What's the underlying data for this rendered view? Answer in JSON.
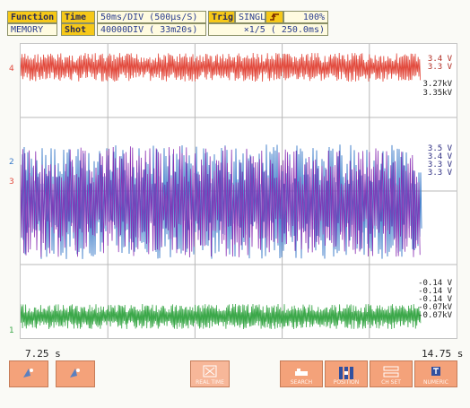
{
  "header": {
    "function_label": "Function",
    "function_value": "MEMORY",
    "time_label": "Time",
    "shot_label": "Shot",
    "time_value": "50ms/DIV  (500µs/S)",
    "shot_value": "40000DIV (  33m20s)",
    "trig_label": "Trig",
    "trig_mode": "SINGLE",
    "trig_icon": "trigger-edge-icon",
    "percent": "100%",
    "zoom": "×1/5 ( 250.0ms)"
  },
  "channels": [
    {
      "marker": "4",
      "color": "#e24a3d"
    },
    {
      "marker": "2",
      "color": "#3b7bc9"
    },
    {
      "marker": "3",
      "color": "#e24a3d"
    },
    {
      "marker": "1",
      "color": "#3ca84a"
    }
  ],
  "side_values": {
    "ch4": [
      "3.4 V",
      "3.3 V",
      "3.27kV",
      "3.35kV"
    ],
    "ch23": [
      "3.5 V",
      "3.4 V",
      "3.3 V",
      "3.3 V"
    ],
    "ch1": [
      "-0.14 V",
      "-0.14 V",
      "-0.14 V",
      "-0.07kV",
      "-0.07kV"
    ]
  },
  "time_axis": {
    "start": "7.25 s",
    "end": "14.75 s"
  },
  "buttons": [
    {
      "caption": "",
      "icon": "cursor-a-icon"
    },
    {
      "caption": "",
      "icon": "cursor-b-icon"
    },
    {
      "caption": "REAL TIME",
      "icon": "realtime-icon"
    },
    {
      "caption": "SEARCH",
      "icon": "search-icon"
    },
    {
      "caption": "POSITION",
      "icon": "position-icon"
    },
    {
      "caption": "CH SET",
      "icon": "channel-set-icon"
    },
    {
      "caption": "NUMERIC",
      "icon": "numeric-icon"
    }
  ],
  "colors": {
    "background": "#fafaf6",
    "accent": "#f6c818",
    "button": "#f4a27a"
  }
}
